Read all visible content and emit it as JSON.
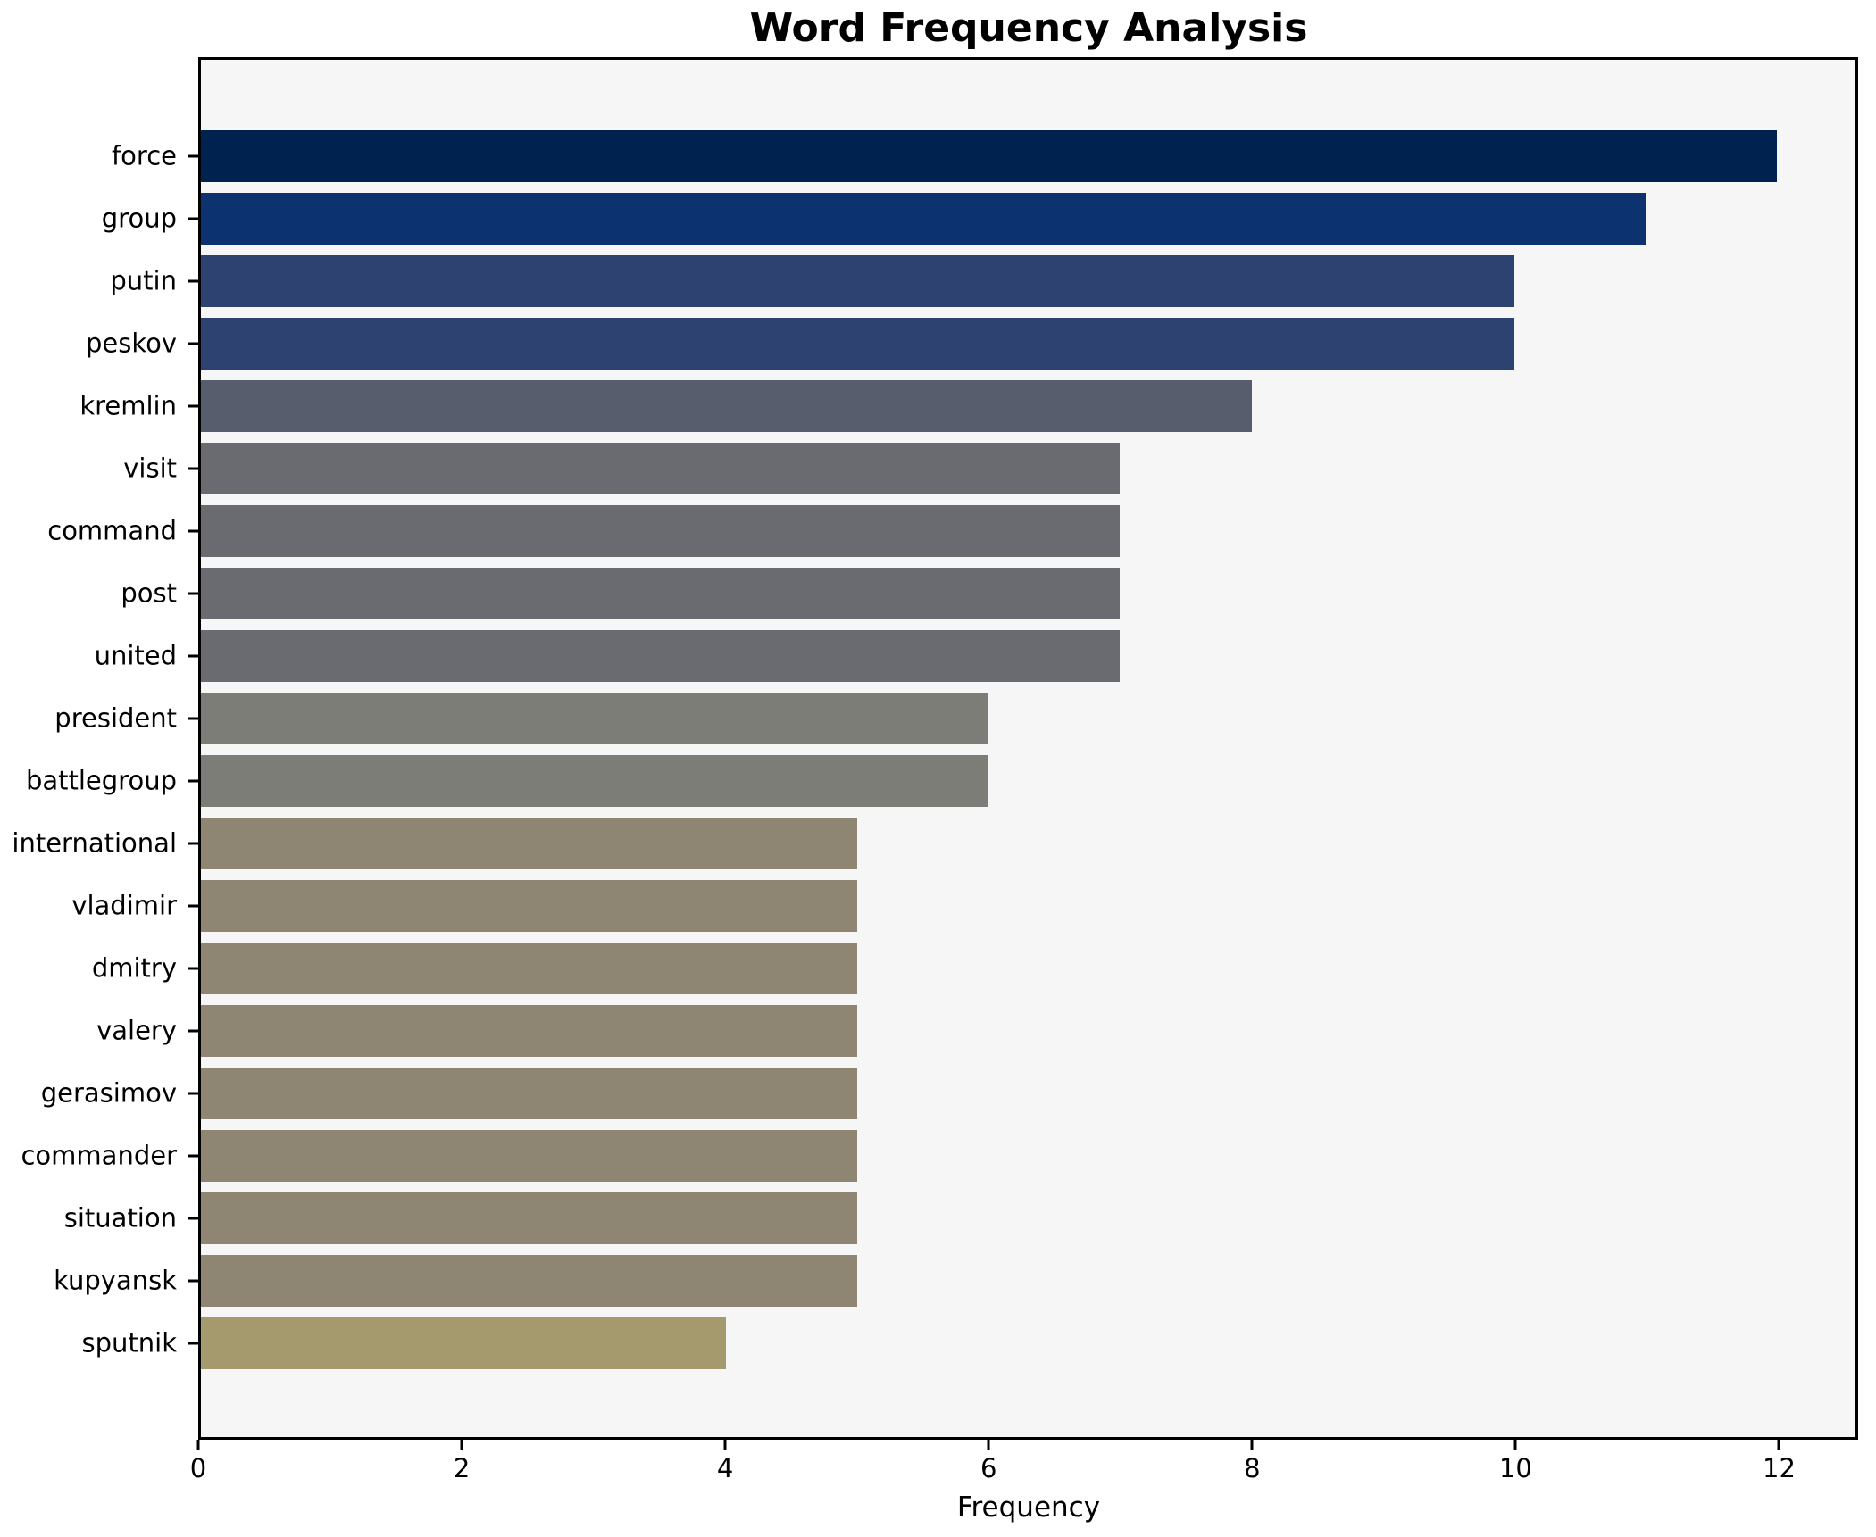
{
  "chart_data": {
    "type": "bar",
    "orientation": "horizontal",
    "title": "Word Frequency Analysis",
    "xlabel": "Frequency",
    "ylabel": "",
    "categories": [
      "force",
      "group",
      "putin",
      "peskov",
      "kremlin",
      "visit",
      "command",
      "post",
      "united",
      "president",
      "battlegroup",
      "international",
      "vladimir",
      "dmitry",
      "valery",
      "gerasimov",
      "commander",
      "situation",
      "kupyansk",
      "sputnik"
    ],
    "values": [
      12,
      11,
      10,
      10,
      8,
      7,
      7,
      7,
      7,
      6,
      6,
      5,
      5,
      5,
      5,
      5,
      5,
      5,
      5,
      4
    ],
    "bar_colors": [
      "#00224e",
      "#0d3270",
      "#2e4271",
      "#2e4271",
      "#575d6d",
      "#6a6b71",
      "#6a6b71",
      "#6a6b71",
      "#6a6b71",
      "#7d7d78",
      "#7d7d78",
      "#8e8672",
      "#8e8672",
      "#8e8672",
      "#8e8672",
      "#8e8672",
      "#8e8672",
      "#8e8672",
      "#8e8672",
      "#a59a6e"
    ],
    "xlim": [
      0,
      12.6
    ],
    "xticks": [
      0,
      2,
      4,
      6,
      8,
      10,
      12
    ],
    "grid": false,
    "legend": "none",
    "plot_background": "#f6f6f7",
    "figure_background": "#ffffff"
  }
}
